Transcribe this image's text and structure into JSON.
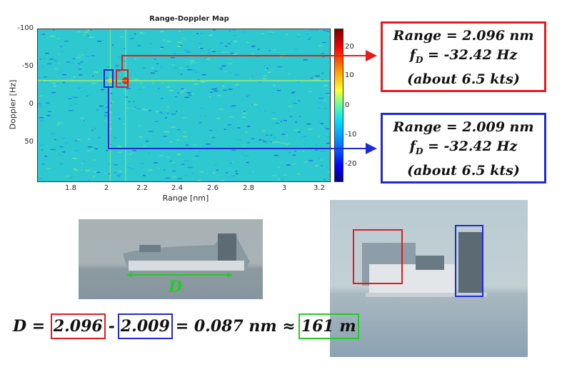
{
  "rd_map": {
    "title": "Range-Doppler Map",
    "xlabel": "Range [nm]",
    "ylabel": "Doppler [Hz]",
    "xticks": [
      "1.8",
      "2",
      "2.2",
      "2.4",
      "2.6",
      "2.8",
      "3",
      "3.2"
    ],
    "yticks": [
      "-100",
      "-50",
      "0",
      "50"
    ],
    "colorbar_ticks": [
      "20",
      "10",
      "0",
      "-10",
      "-20"
    ],
    "colormap": "jet"
  },
  "chart_data": {
    "type": "heatmap",
    "title": "Range-Doppler Map",
    "xlabel": "Range [nm]",
    "ylabel": "Doppler [Hz]",
    "xlim": [
      1.6,
      3.25
    ],
    "ylim": [
      -100,
      100
    ],
    "colorbar_range": [
      -25,
      25
    ],
    "peaks": [
      {
        "range_nm": 2.096,
        "doppler_hz": -32.42
      },
      {
        "range_nm": 2.009,
        "doppler_hz": -32.42
      }
    ]
  },
  "red_box": {
    "line1": "Range = 2.096 nm",
    "fd_label": "f",
    "fd_sub": "D",
    "fd_value": " = -32.42 Hz",
    "line3": "(about 6.5 kts)",
    "color": "#e41c1c"
  },
  "blue_box": {
    "line1": "Range = 2.009 nm",
    "fd_label": "f",
    "fd_sub": "D",
    "fd_value": " = -32.42 Hz",
    "line3": "(about 6.5 kts)",
    "color": "#1f2bd0"
  },
  "ship_photo": {
    "length_label": "D",
    "length_color": "#22cc22"
  },
  "equation": {
    "lhs": "D = ",
    "val_red": "2.096",
    "minus": "-",
    "val_blue": "2.009",
    "result": "= 0.087 nm ≈",
    "val_green": "161 m"
  }
}
